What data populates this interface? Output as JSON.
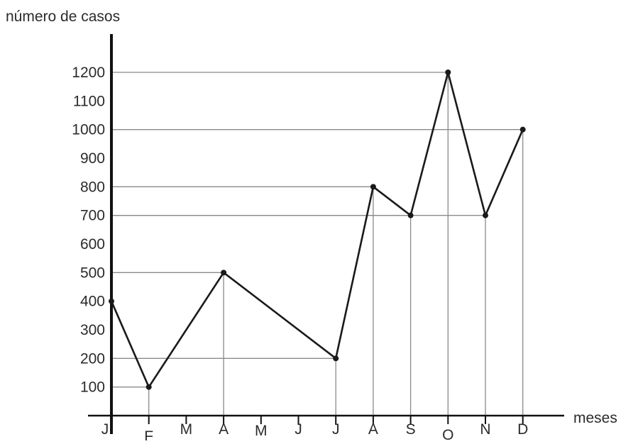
{
  "chart_data": {
    "type": "line",
    "title": "",
    "ylabel": "número de casos",
    "xlabel": "meses",
    "categories": [
      "J",
      "F",
      "M",
      "A",
      "M",
      "J",
      "J",
      "A",
      "S",
      "O",
      "N",
      "D"
    ],
    "series": [
      {
        "values": [
          400,
          100,
          null,
          500,
          null,
          null,
          200,
          800,
          700,
          1200,
          700,
          1000
        ]
      }
    ],
    "yticks": [
      "100",
      "200",
      "300",
      "400",
      "500",
      "600",
      "700",
      "800",
      "900",
      "1000",
      "1100",
      "1200"
    ],
    "ylim": [
      0,
      1200
    ],
    "grid": "guide lines from each plotted point to both axes",
    "colors": {
      "line": "#1a1a1a",
      "guides": "#8a8a8a",
      "axes": "#111111",
      "text": "#2b2b2b"
    }
  }
}
